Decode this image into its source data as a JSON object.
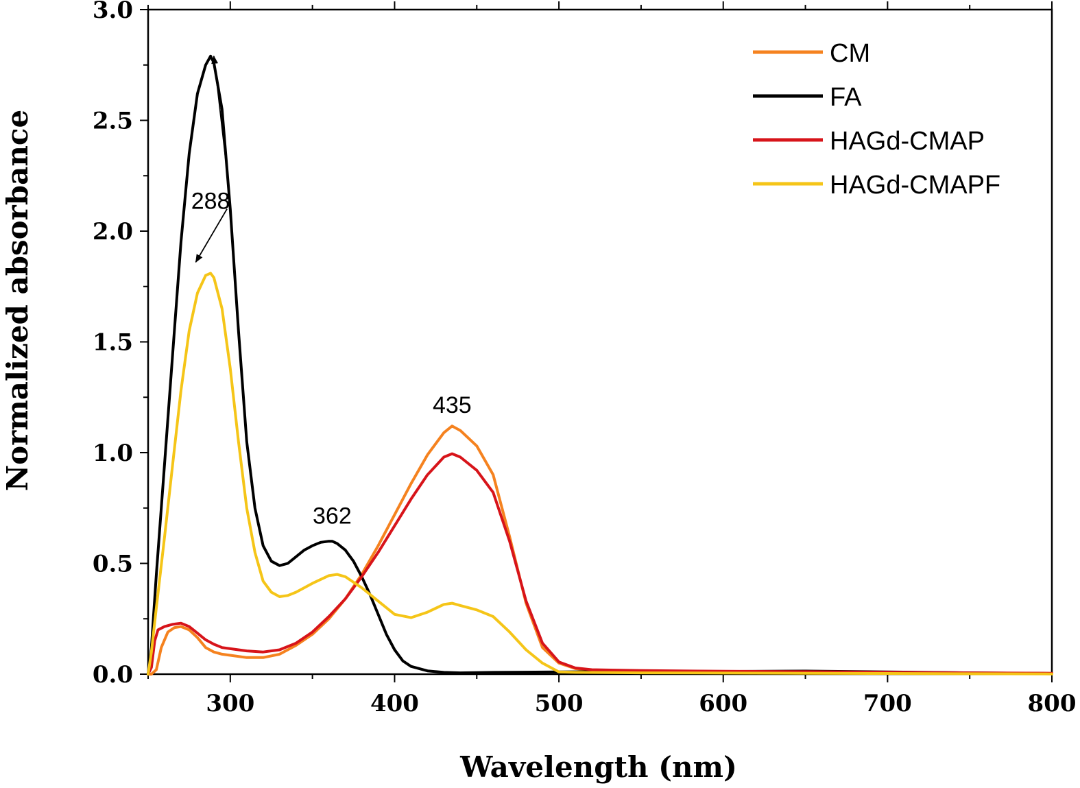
{
  "chart_data": {
    "type": "line",
    "xlabel": "Wavelength (nm)",
    "ylabel": "Normalized absorbance",
    "xlim": [
      250,
      800
    ],
    "ylim": [
      0.0,
      3.0
    ],
    "x_ticks": [
      300,
      400,
      500,
      600,
      700,
      800
    ],
    "x_tick_labels": [
      "300",
      "400",
      "500",
      "600",
      "700",
      "800"
    ],
    "y_ticks": [
      0.0,
      0.5,
      1.0,
      1.5,
      2.0,
      2.5,
      3.0
    ],
    "y_tick_labels": [
      "0.0",
      "0.5",
      "1.0",
      "1.5",
      "2.0",
      "2.5",
      "3.0"
    ],
    "grid": false,
    "legend_position": "top-right",
    "series": [
      {
        "name": "CM",
        "color": "#f5821f",
        "x": [
          250,
          252,
          255,
          258,
          262,
          266,
          270,
          275,
          280,
          285,
          290,
          295,
          300,
          310,
          320,
          330,
          340,
          350,
          360,
          370,
          380,
          390,
          400,
          410,
          420,
          430,
          435,
          440,
          450,
          460,
          470,
          480,
          490,
          500,
          510,
          520,
          550,
          600,
          650,
          700,
          750,
          800
        ],
        "y": [
          0.0,
          0.0,
          0.02,
          0.12,
          0.19,
          0.21,
          0.215,
          0.2,
          0.165,
          0.12,
          0.1,
          0.09,
          0.085,
          0.075,
          0.075,
          0.09,
          0.13,
          0.18,
          0.25,
          0.34,
          0.45,
          0.58,
          0.72,
          0.86,
          0.99,
          1.09,
          1.12,
          1.1,
          1.03,
          0.9,
          0.62,
          0.32,
          0.12,
          0.05,
          0.025,
          0.018,
          0.015,
          0.012,
          0.01,
          0.008,
          0.005,
          0.003
        ]
      },
      {
        "name": "FA",
        "color": "#000000",
        "x": [
          250,
          252,
          255,
          260,
          265,
          270,
          275,
          280,
          285,
          288,
          290,
          295,
          300,
          305,
          310,
          315,
          320,
          325,
          330,
          335,
          340,
          345,
          350,
          355,
          360,
          362,
          365,
          370,
          375,
          380,
          385,
          390,
          395,
          400,
          405,
          410,
          420,
          430,
          440,
          460,
          500,
          550,
          600,
          650,
          700,
          750,
          800
        ],
        "y": [
          0.0,
          0.12,
          0.45,
          0.95,
          1.45,
          1.95,
          2.35,
          2.62,
          2.75,
          2.79,
          2.76,
          2.55,
          2.1,
          1.55,
          1.05,
          0.75,
          0.58,
          0.51,
          0.49,
          0.5,
          0.53,
          0.56,
          0.58,
          0.595,
          0.6,
          0.6,
          0.59,
          0.56,
          0.51,
          0.44,
          0.36,
          0.27,
          0.18,
          0.11,
          0.06,
          0.035,
          0.015,
          0.008,
          0.006,
          0.008,
          0.01,
          0.012,
          0.012,
          0.014,
          0.01,
          0.006,
          0.003
        ]
      },
      {
        "name": "HAGd-CMAP",
        "color": "#d7141a",
        "x": [
          250,
          252,
          254,
          256,
          260,
          265,
          270,
          275,
          280,
          285,
          290,
          295,
          300,
          310,
          320,
          330,
          340,
          350,
          360,
          370,
          380,
          390,
          400,
          410,
          420,
          430,
          435,
          440,
          450,
          460,
          470,
          480,
          490,
          500,
          510,
          520,
          550,
          600,
          650,
          700,
          750,
          800
        ],
        "y": [
          0.0,
          0.03,
          0.15,
          0.2,
          0.215,
          0.225,
          0.23,
          0.215,
          0.185,
          0.155,
          0.135,
          0.12,
          0.115,
          0.105,
          0.1,
          0.11,
          0.14,
          0.19,
          0.26,
          0.34,
          0.44,
          0.55,
          0.67,
          0.79,
          0.9,
          0.98,
          0.995,
          0.98,
          0.92,
          0.82,
          0.6,
          0.33,
          0.14,
          0.055,
          0.028,
          0.02,
          0.016,
          0.013,
          0.011,
          0.009,
          0.006,
          0.004
        ]
      },
      {
        "name": "HAGd-CMAPF",
        "color": "#f5c518",
        "x": [
          250,
          252,
          255,
          260,
          265,
          270,
          275,
          280,
          285,
          288,
          290,
          295,
          300,
          305,
          310,
          315,
          320,
          325,
          330,
          335,
          340,
          350,
          360,
          365,
          370,
          380,
          390,
          400,
          410,
          420,
          430,
          435,
          440,
          450,
          460,
          470,
          480,
          490,
          500,
          510,
          550,
          600,
          650,
          700,
          750,
          800
        ],
        "y": [
          0.0,
          0.1,
          0.3,
          0.62,
          0.95,
          1.28,
          1.55,
          1.72,
          1.8,
          1.81,
          1.79,
          1.65,
          1.38,
          1.05,
          0.75,
          0.55,
          0.42,
          0.37,
          0.35,
          0.355,
          0.37,
          0.41,
          0.445,
          0.45,
          0.44,
          0.39,
          0.33,
          0.27,
          0.255,
          0.28,
          0.315,
          0.32,
          0.31,
          0.29,
          0.26,
          0.19,
          0.11,
          0.05,
          0.01,
          0.008,
          0.006,
          0.005,
          0.004,
          0.003,
          0.002,
          0.001
        ]
      }
    ],
    "annotations": [
      {
        "text": "288",
        "tx": 288,
        "ty": 2.1
      },
      {
        "text": "362",
        "tx": 362,
        "ty": 0.68
      },
      {
        "text": "435",
        "tx": 435,
        "ty": 1.18
      }
    ],
    "arrows": [
      {
        "from": [
          298,
          2.27
        ],
        "to": [
          290,
          2.79
        ]
      },
      {
        "from": [
          298,
          2.1
        ],
        "to": [
          279,
          1.86
        ]
      }
    ]
  }
}
